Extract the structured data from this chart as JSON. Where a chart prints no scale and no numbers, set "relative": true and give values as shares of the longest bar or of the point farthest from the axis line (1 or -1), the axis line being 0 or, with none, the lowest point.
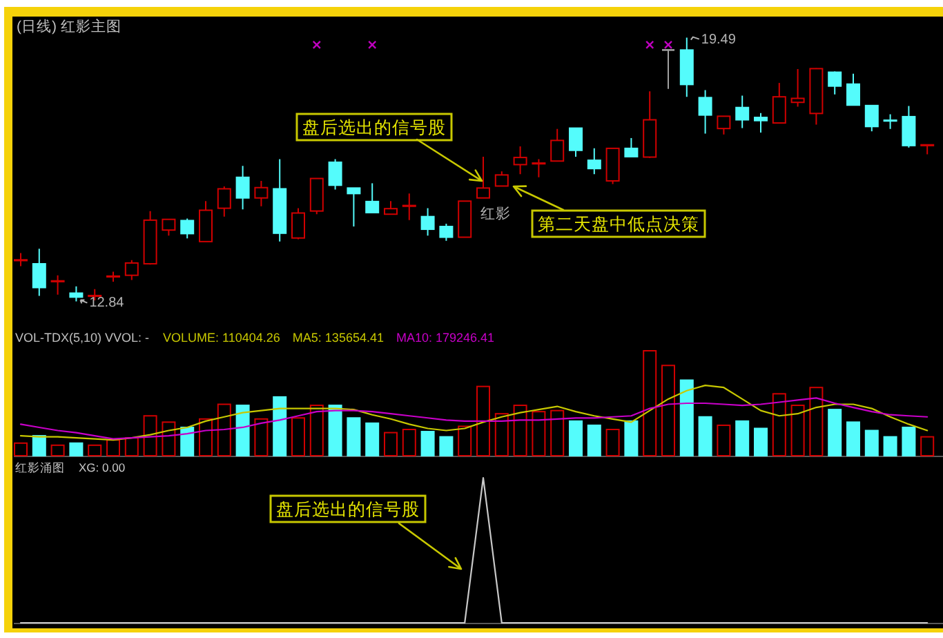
{
  "chart_data": [
    {
      "type": "candlestick",
      "title": "(日线) 红影主图",
      "categories": [
        null,
        null,
        null,
        null,
        null,
        null,
        null,
        null,
        null,
        null,
        null,
        null,
        null,
        null,
        null,
        null,
        null,
        null,
        null,
        null,
        null,
        null,
        null,
        null,
        null,
        null,
        null,
        null,
        null,
        null,
        null,
        null,
        null,
        null,
        null,
        null,
        null,
        null,
        null,
        null,
        null,
        null,
        null,
        null,
        null,
        null,
        null,
        null,
        null,
        null
      ],
      "ohlc": [
        [
          13.87,
          14.06,
          13.73,
          13.89
        ],
        [
          13.79,
          14.17,
          12.98,
          13.19
        ],
        [
          13.34,
          13.5,
          13.01,
          13.36
        ],
        [
          13.05,
          13.22,
          12.84,
          12.95
        ],
        [
          12.97,
          13.15,
          12.87,
          12.99
        ],
        [
          13.46,
          13.59,
          13.34,
          13.48
        ],
        [
          13.5,
          13.88,
          13.38,
          13.81
        ],
        [
          13.79,
          15.12,
          13.77,
          14.89
        ],
        [
          14.64,
          14.91,
          14.5,
          14.91
        ],
        [
          14.88,
          14.93,
          14.43,
          14.55
        ],
        [
          14.35,
          15.37,
          14.35,
          15.14
        ],
        [
          15.19,
          15.74,
          14.98,
          15.68
        ],
        [
          15.97,
          16.26,
          15.16,
          15.45
        ],
        [
          15.45,
          15.88,
          15.24,
          15.71
        ],
        [
          15.68,
          16.43,
          14.35,
          14.56
        ],
        [
          14.44,
          15.19,
          14.41,
          15.07
        ],
        [
          15.12,
          15.94,
          15.04,
          15.94
        ],
        [
          16.35,
          16.43,
          15.66,
          15.77
        ],
        [
          15.7,
          15.7,
          14.73,
          15.56
        ],
        [
          15.36,
          15.82,
          15.08,
          15.08
        ],
        [
          15.04,
          15.37,
          15.04,
          15.18
        ],
        [
          15.24,
          15.56,
          14.89,
          15.26
        ],
        [
          14.98,
          15.19,
          14.5,
          14.66
        ],
        [
          14.73,
          14.8,
          14.37,
          14.46
        ],
        [
          14.46,
          15.37,
          14.46,
          15.37
        ],
        [
          15.45,
          16.49,
          15.45,
          15.7
        ],
        [
          15.75,
          16.12,
          15.75,
          16.03
        ],
        [
          16.29,
          16.75,
          16.05,
          16.47
        ],
        [
          16.31,
          16.43,
          15.97,
          16.33
        ],
        [
          16.38,
          17.19,
          16.38,
          16.9
        ],
        [
          17.21,
          17.21,
          16.49,
          16.65
        ],
        [
          16.4,
          16.7,
          16.05,
          16.19
        ],
        [
          15.88,
          16.7,
          15.8,
          16.7
        ],
        [
          16.7,
          16.96,
          16.49,
          16.49
        ],
        [
          16.48,
          18.14,
          16.46,
          17.42
        ],
        [
          19.18,
          19.18,
          18.2,
          19.18
        ],
        [
          19.18,
          19.49,
          18.0,
          18.31
        ],
        [
          17.98,
          18.17,
          17.07,
          17.54
        ],
        [
          17.2,
          17.51,
          17.05,
          17.51
        ],
        [
          17.73,
          18.03,
          17.21,
          17.42
        ],
        [
          17.48,
          17.59,
          17.1,
          17.4
        ],
        [
          17.34,
          18.35,
          17.34,
          18.0
        ],
        [
          17.86,
          18.7,
          17.75,
          17.96
        ],
        [
          17.58,
          18.72,
          17.3,
          18.71
        ],
        [
          18.62,
          18.64,
          18.06,
          18.27
        ],
        [
          18.32,
          18.58,
          17.79,
          17.79
        ],
        [
          17.78,
          17.78,
          17.13,
          17.25
        ],
        [
          17.41,
          17.56,
          17.19,
          17.39
        ],
        [
          17.5,
          17.77,
          16.72,
          16.77
        ],
        [
          16.77,
          16.79,
          16.55,
          16.79
        ]
      ],
      "colors": [
        "#d00000",
        "#54fcfc",
        "#d00000",
        "#54fcfc",
        "#d00000",
        "#d00000",
        "#d00000",
        "#d00000",
        "#d00000",
        "#54fcfc",
        "#d00000",
        "#d00000",
        "#54fcfc",
        "#d00000",
        "#54fcfc",
        "#d00000",
        "#d00000",
        "#54fcfc",
        "#54fcfc",
        "#54fcfc",
        "#d00000",
        "#d00000",
        "#54fcfc",
        "#54fcfc",
        "#d00000",
        "#d00000",
        "#d00000",
        "#d00000",
        "#d00000",
        "#d00000",
        "#54fcfc",
        "#54fcfc",
        "#d00000",
        "#54fcfc",
        "#d00000",
        "#a0a0a0",
        "#54fcfc",
        "#54fcfc",
        "#d00000",
        "#54fcfc",
        "#54fcfc",
        "#d00000",
        "#d00000",
        "#d00000",
        "#54fcfc",
        "#54fcfc",
        "#54fcfc",
        "#54fcfc",
        "#54fcfc",
        "#d00000"
      ],
      "series": [
        {
          "type": "scatter",
          "color": "#c000c0",
          "marker": "cross",
          "values": [
            null,
            null,
            null,
            null,
            null,
            null,
            null,
            null,
            null,
            null,
            null,
            null,
            null,
            null,
            null,
            null,
            19.31,
            null,
            null,
            19.31,
            null,
            null,
            null,
            null,
            null,
            null,
            null,
            null,
            null,
            null,
            null,
            null,
            null,
            null,
            19.31,
            19.31,
            null,
            null,
            null,
            null,
            null,
            null,
            null,
            null,
            null,
            null,
            null,
            null,
            null,
            null
          ]
        }
      ],
      "annotations": [
        "盘后选出的信号股",
        "第二天盘中低点决策",
        "红影",
        "19.49",
        "12.84"
      ]
    },
    {
      "type": "bar",
      "title": "VOL-TDX(5,10) VVOL: -",
      "relative": true,
      "categories": [
        null,
        null,
        null,
        null,
        null,
        null,
        null,
        null,
        null,
        null,
        null,
        null,
        null,
        null,
        null,
        null,
        null,
        null,
        null,
        null,
        null,
        null,
        null,
        null,
        null,
        null,
        null,
        null,
        null,
        null,
        null,
        null,
        null,
        null,
        null,
        null,
        null,
        null,
        null,
        null,
        null,
        null,
        null,
        null,
        null,
        null,
        null,
        null,
        null,
        null
      ],
      "series": [
        {
          "colors": [
            "#d00000",
            "#54fcfc",
            "#d00000",
            "#54fcfc",
            "#d00000",
            "#d00000",
            "#d00000",
            "#d00000",
            "#d00000",
            "#54fcfc",
            "#d00000",
            "#d00000",
            "#54fcfc",
            "#d00000",
            "#54fcfc",
            "#d00000",
            "#d00000",
            "#54fcfc",
            "#54fcfc",
            "#54fcfc",
            "#d00000",
            "#d00000",
            "#54fcfc",
            "#54fcfc",
            "#d00000",
            "#d00000",
            "#d00000",
            "#d00000",
            "#d00000",
            "#d00000",
            "#54fcfc",
            "#54fcfc",
            "#d00000",
            "#54fcfc",
            "#d00000",
            "#d00000",
            "#54fcfc",
            "#54fcfc",
            "#d00000",
            "#54fcfc",
            "#54fcfc",
            "#d00000",
            "#d00000",
            "#d00000",
            "#54fcfc",
            "#54fcfc",
            "#54fcfc",
            "#54fcfc",
            "#54fcfc",
            "#d00000"
          ],
          "values": [
            0.12,
            0.19,
            0.1,
            0.12,
            0.1,
            0.15,
            0.17,
            0.38,
            0.32,
            0.27,
            0.35,
            0.49,
            0.48,
            0.35,
            0.56,
            0.36,
            0.48,
            0.48,
            0.36,
            0.31,
            0.22,
            0.25,
            0.23,
            0.18,
            0.28,
            0.66,
            0.4,
            0.48,
            0.42,
            0.43,
            0.33,
            0.29,
            0.25,
            0.33,
            1,
            0.86,
            0.72,
            0.37,
            0.29,
            0.33,
            0.26,
            0.59,
            0.48,
            0.65,
            0.44,
            0.32,
            0.24,
            0.18,
            0.27,
            0.18
          ]
        },
        {
          "type": "line",
          "name": "MA5: 135654.41",
          "color": "#c8c800",
          "values": [
            0.19,
            0.18,
            0.18,
            0.17,
            0.16,
            0.15,
            0.17,
            0.2,
            0.24,
            0.27,
            0.33,
            0.37,
            0.41,
            0.43,
            0.45,
            0.45,
            0.45,
            0.45,
            0.44,
            0.39,
            0.35,
            0.3,
            0.26,
            0.24,
            0.26,
            0.32,
            0.37,
            0.41,
            0.44,
            0.47,
            0.42,
            0.38,
            0.35,
            0.32,
            0.43,
            0.54,
            0.62,
            0.67,
            0.65,
            0.54,
            0.43,
            0.38,
            0.4,
            0.46,
            0.49,
            0.49,
            0.45,
            0.37,
            0.3,
            0.24
          ]
        },
        {
          "type": "line",
          "name": "MA10: 179246.41",
          "color": "#c800c8",
          "values": [
            0.3,
            0.27,
            0.24,
            0.22,
            0.19,
            0.16,
            0.17,
            0.18,
            0.19,
            0.21,
            0.24,
            0.25,
            0.27,
            0.31,
            0.34,
            0.38,
            0.42,
            0.43,
            0.43,
            0.42,
            0.4,
            0.38,
            0.36,
            0.34,
            0.33,
            0.33,
            0.33,
            0.34,
            0.34,
            0.35,
            0.36,
            0.36,
            0.37,
            0.38,
            0.45,
            0.49,
            0.5,
            0.5,
            0.49,
            0.48,
            0.49,
            0.51,
            0.53,
            0.55,
            0.5,
            0.46,
            0.42,
            0.39,
            0.38,
            0.37
          ]
        }
      ],
      "annotations": [
        "VOLUME: 110404.26"
      ]
    },
    {
      "type": "line",
      "title": "红影涌图",
      "relative": true,
      "categories": [
        null,
        null,
        null,
        null,
        null,
        null,
        null,
        null,
        null,
        null,
        null,
        null,
        null,
        null,
        null,
        null,
        null,
        null,
        null,
        null,
        null,
        null,
        null,
        null,
        null,
        null,
        null,
        null,
        null,
        null,
        null,
        null,
        null,
        null,
        null,
        null,
        null,
        null,
        null,
        null,
        null,
        null,
        null,
        null,
        null,
        null,
        null,
        null,
        null,
        null
      ],
      "series": [
        {
          "name": "XG: 0.00",
          "color": "#c8c8c8",
          "values": [
            0,
            0,
            0,
            0,
            0,
            0,
            0,
            0,
            0,
            0,
            0,
            0,
            0,
            0,
            0,
            0,
            0,
            0,
            0,
            0,
            0,
            0,
            0,
            0,
            0,
            1,
            0,
            0,
            0,
            0,
            0,
            0,
            0,
            0,
            0,
            0,
            0,
            0,
            0,
            0,
            0,
            0,
            0,
            0,
            0,
            0,
            0,
            0,
            0,
            0
          ]
        }
      ],
      "annotations": [
        "盘后选出的信号股"
      ]
    }
  ]
}
